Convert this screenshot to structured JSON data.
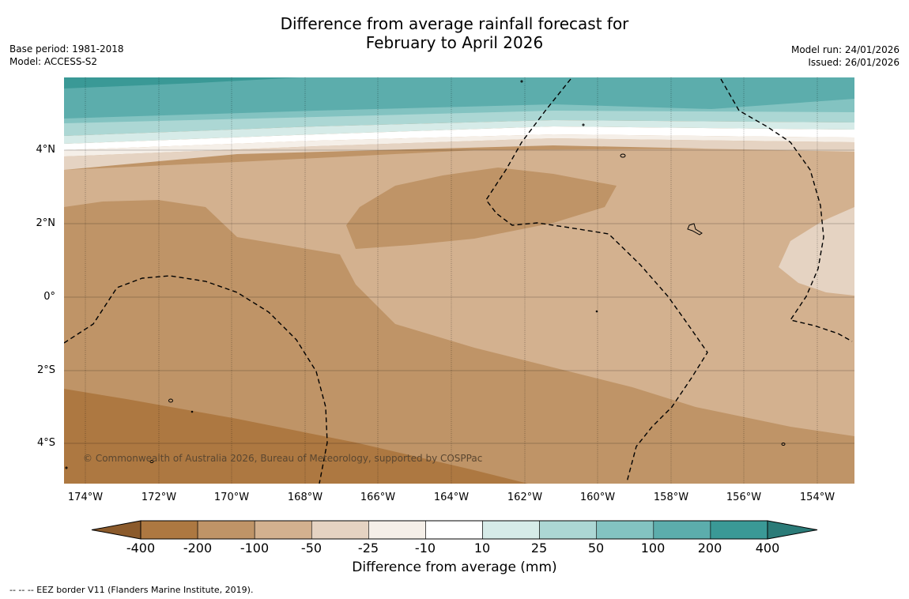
{
  "title": {
    "line1": "Difference from average rainfall forecast for",
    "line2": "February to April 2026"
  },
  "meta_left": {
    "base_period": "Base period: 1981-2018",
    "model": "Model: ACCESS-S2"
  },
  "meta_right": {
    "model_run": "Model run: 24/01/2026",
    "issued": "Issued: 26/01/2026"
  },
  "map": {
    "lat_labels": [
      "4°N",
      "2°N",
      "0°",
      "2°S",
      "4°S"
    ],
    "lon_labels": [
      "174°W",
      "172°W",
      "170°W",
      "168°W",
      "166°W",
      "164°W",
      "162°W",
      "160°W",
      "158°W",
      "156°W",
      "154°W"
    ],
    "copyright": "© Commonwealth of Australia 2026, Bureau of Meteorology, supported by COSPPac"
  },
  "colorbar": {
    "title": "Difference from average (mm)",
    "tick_labels": [
      "-400",
      "-200",
      "-100",
      "-50",
      "-25",
      "-10",
      "10",
      "25",
      "50",
      "100",
      "200",
      "400"
    ],
    "colors": [
      "#8b5a2b",
      "#ad7841",
      "#bf9467",
      "#d3b18f",
      "#e5d3c2",
      "#f5efe8",
      "#ffffff",
      "#d6ebe8",
      "#acd7d4",
      "#83c3c1",
      "#5cadac",
      "#3a9996",
      "#2b7b78"
    ]
  },
  "footnote": "--  --  -- EEZ border V11 (Flanders Marine Institute, 2019)."
}
